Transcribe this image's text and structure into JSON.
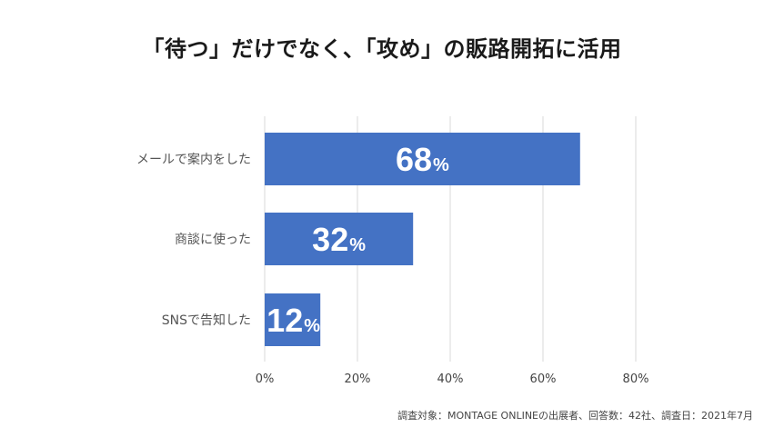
{
  "chart_data": {
    "type": "bar",
    "orientation": "horizontal",
    "title": "「待つ」だけでなく、「攻め」の販路開拓に活用",
    "categories": [
      "メールで案内をした",
      "商談に使った",
      "SNSで告知した"
    ],
    "values": [
      68,
      32,
      12
    ],
    "value_labels": [
      {
        "number": "68",
        "unit": "%"
      },
      {
        "number": "32",
        "unit": "%"
      },
      {
        "number": "12",
        "unit": "%"
      }
    ],
    "xlim": [
      0,
      80
    ],
    "xticks": [
      "0%",
      "20%",
      "40%",
      "60%",
      "80%"
    ],
    "grid": true,
    "legend": "none",
    "bar_color": "#4472C4",
    "label_color": "#ffffff"
  },
  "footnote": "調査対象：MONTAGE ONLINEの出展者、回答数：42社、調査日：2021年7月"
}
